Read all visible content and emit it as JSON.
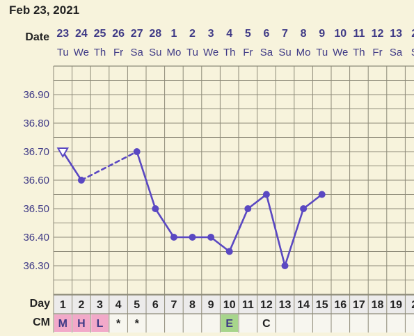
{
  "header": {
    "date_title": "Feb 23, 2021"
  },
  "row_labels": {
    "date": "Date",
    "day": "Day",
    "cm": "CM"
  },
  "colors": {
    "background": "#f7f3dc",
    "grid": "#8d8a78",
    "line": "#5a48c2",
    "text_dark": "#222222",
    "text_accent": "#3f3a86",
    "cm_pink": "#f2a9c9",
    "cm_green": "#a7d58c",
    "day_cell": "#ecebeb"
  },
  "chart_data": {
    "type": "line",
    "title": "",
    "dates": [
      "23",
      "24",
      "25",
      "26",
      "27",
      "28",
      "1",
      "2",
      "3",
      "4",
      "5",
      "6",
      "7",
      "8",
      "9",
      "10",
      "11",
      "12",
      "13",
      "2"
    ],
    "weekdays": [
      "Tu",
      "We",
      "Th",
      "Fr",
      "Sa",
      "Su",
      "Mo",
      "Tu",
      "We",
      "Th",
      "Fr",
      "Sa",
      "Su",
      "Mo",
      "Tu",
      "We",
      "Th",
      "Fr",
      "Sa",
      "S"
    ],
    "cycle_days": [
      "1",
      "2",
      "3",
      "4",
      "5",
      "6",
      "7",
      "8",
      "9",
      "10",
      "11",
      "12",
      "13",
      "14",
      "15",
      "16",
      "17",
      "18",
      "19",
      "2"
    ],
    "y_ticks": [
      "36.90",
      "36.80",
      "36.70",
      "36.60",
      "36.50",
      "36.40",
      "36.30"
    ],
    "ylim": [
      36.2,
      37.0
    ],
    "series": [
      {
        "values": [
          36.7,
          36.6,
          null,
          null,
          36.7,
          36.5,
          36.4,
          36.4,
          36.4,
          36.35,
          36.5,
          36.55,
          36.3,
          36.5,
          36.55,
          null,
          null,
          null,
          null,
          null
        ],
        "open_markers": [
          0
        ],
        "dashed_segments": [
          [
            1,
            4
          ]
        ]
      }
    ],
    "cm_entries": [
      {
        "day": 1,
        "text": "M",
        "color": "pink"
      },
      {
        "day": 2,
        "text": "H",
        "color": "pink"
      },
      {
        "day": 3,
        "text": "L",
        "color": "pink"
      },
      {
        "day": 4,
        "text": "*",
        "color": "none"
      },
      {
        "day": 5,
        "text": "*",
        "color": "none"
      },
      {
        "day": 10,
        "text": "E",
        "color": "green"
      },
      {
        "day": 12,
        "text": "C",
        "color": "none"
      }
    ]
  }
}
